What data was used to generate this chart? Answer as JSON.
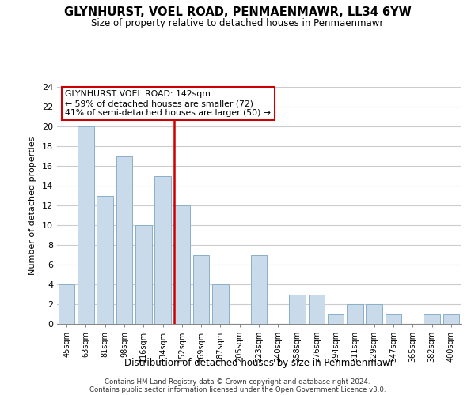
{
  "title": "GLYNHURST, VOEL ROAD, PENMAENMAWR, LL34 6YW",
  "subtitle": "Size of property relative to detached houses in Penmaenmawr",
  "xlabel": "Distribution of detached houses by size in Penmaenmawr",
  "ylabel": "Number of detached properties",
  "bar_labels": [
    "45sqm",
    "63sqm",
    "81sqm",
    "98sqm",
    "116sqm",
    "134sqm",
    "152sqm",
    "169sqm",
    "187sqm",
    "205sqm",
    "223sqm",
    "240sqm",
    "258sqm",
    "276sqm",
    "294sqm",
    "311sqm",
    "329sqm",
    "347sqm",
    "365sqm",
    "382sqm",
    "400sqm"
  ],
  "bar_values": [
    4,
    20,
    13,
    17,
    10,
    15,
    12,
    7,
    4,
    0,
    7,
    0,
    3,
    3,
    1,
    2,
    2,
    1,
    0,
    1,
    1
  ],
  "bar_color": "#c9daea",
  "bar_edge_color": "#8aafc8",
  "red_line_index": 6,
  "red_line_color": "#cc0000",
  "annotation_line1": "GLYNHURST VOEL ROAD: 142sqm",
  "annotation_line2": "← 59% of detached houses are smaller (72)",
  "annotation_line3": "41% of semi-detached houses are larger (50) →",
  "ylim": [
    0,
    24
  ],
  "yticks": [
    0,
    2,
    4,
    6,
    8,
    10,
    12,
    14,
    16,
    18,
    20,
    22,
    24
  ],
  "footer_line1": "Contains HM Land Registry data © Crown copyright and database right 2024.",
  "footer_line2": "Contains public sector information licensed under the Open Government Licence v3.0.",
  "background_color": "#ffffff",
  "grid_color": "#cccccc"
}
